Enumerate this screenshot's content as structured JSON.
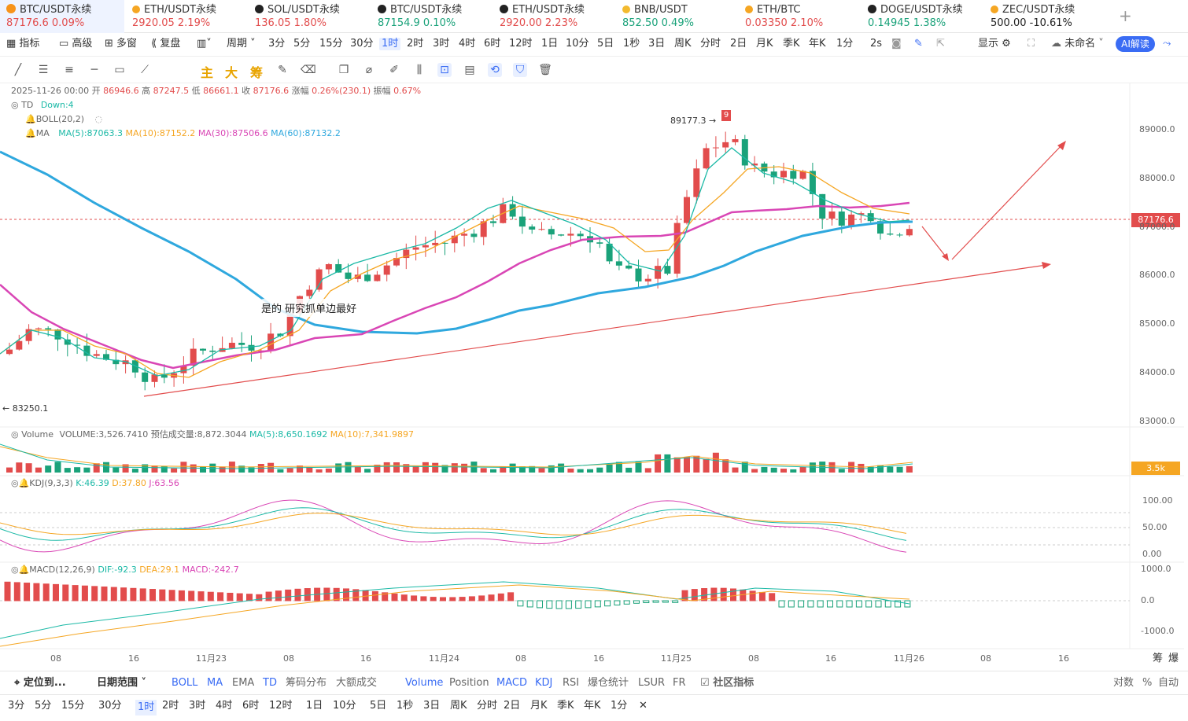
{
  "tickers": [
    {
      "name": "BTC/USDT永续",
      "value": "87176.6",
      "change": "0.09%",
      "dir": "up",
      "color": "#f7931a",
      "active": true
    },
    {
      "name": "ETH/USDT永续",
      "value": "2920.05",
      "change": "2.19%",
      "dir": "up",
      "color": "#f5a623"
    },
    {
      "name": "SOL/USDT永续",
      "value": "136.05",
      "change": "1.80%",
      "dir": "up",
      "color": "#222"
    },
    {
      "name": "BTC/USDT永续",
      "value": "87154.9",
      "change": "0.10%",
      "dir": "dn",
      "color": "#222"
    },
    {
      "name": "ETH/USDT永续",
      "value": "2920.00",
      "change": "2.23%",
      "dir": "up",
      "color": "#222"
    },
    {
      "name": "BNB/USDT",
      "value": "852.50",
      "change": "0.49%",
      "dir": "dn",
      "color": "#f3ba2f"
    },
    {
      "name": "ETH/BTC",
      "value": "0.03350",
      "change": "2.10%",
      "dir": "up",
      "color": "#f5a623"
    },
    {
      "name": "DOGE/USDT永续",
      "value": "0.14945",
      "change": "1.38%",
      "dir": "dn",
      "color": "#222"
    },
    {
      "name": "ZEC/USDT永续",
      "value": "500.00",
      "change": "-10.61%",
      "dir": "plain",
      "color": "#f5a623"
    }
  ],
  "toolbar": {
    "items": [
      "指标",
      "高级",
      "多窗",
      "复盘",
      "周期",
      "3分",
      "5分",
      "15分",
      "30分",
      "1时",
      "2时",
      "3时",
      "4时",
      "6时",
      "12时",
      "1日",
      "10分",
      "5日",
      "1秒",
      "3日",
      "周K",
      "分时",
      "2日",
      "月K",
      "季K",
      "年K",
      "1分",
      "2s",
      "显示",
      "未命名"
    ],
    "ai": "AI解读"
  },
  "drawtools": {
    "labels": [
      "主",
      "大",
      "筹"
    ]
  },
  "info": {
    "date": "2025-11-26 00:00",
    "open_l": "开",
    "open": "86946.6",
    "high_l": "高",
    "high": "87247.5",
    "low_l": "低",
    "low": "86661.1",
    "close_l": "收",
    "close": "87176.6",
    "chg_l": "涨幅",
    "chg": "0.26%(230.1)",
    "amp_l": "振幅",
    "amp": "0.67%"
  },
  "indicators": {
    "td": "TD",
    "td_val": "Down:4",
    "boll": "BOLL(20,2)",
    "ma": "MA",
    "ma5": "MA(5):87063.3",
    "ma10": "MA(10):87152.2",
    "ma30": "MA(30):87506.6",
    "ma60": "MA(60):87132.2",
    "volume": "Volume",
    "vol": "VOLUME:3,526.7410",
    "vol_est": "预估成交量:8,872.3044",
    "vol_ma5": "MA(5):8,650.1692",
    "vol_ma10": "MA(10):7,341.9897",
    "kdj": "KDJ(9,3,3)",
    "k": "K:46.39",
    "d": "D:37.80",
    "j": "J:63.56",
    "macd": "MACD(12,26,9)",
    "dif": "DIF:-92.3",
    "dea": "DEA:29.1",
    "macd_v": "MACD:-242.7"
  },
  "annotations": {
    "high": "89177.3 →",
    "low": "← 83250.1",
    "td9": "9",
    "tip": "是的 研究抓单边最好"
  },
  "price_axis": [
    "89000.0",
    "88000.0",
    "87000.0",
    "86000.0",
    "85000.0",
    "84000.0",
    "83000.0"
  ],
  "last_price": "87176.6",
  "vol_tag": "3.5k",
  "kdj_axis": [
    "100.00",
    "50.00",
    "0.00"
  ],
  "macd_axis": [
    "1000.0",
    "0.0",
    "-1000.0"
  ],
  "time_axis": [
    "08",
    "16",
    "11月23",
    "08",
    "16",
    "11月24",
    "08",
    "16",
    "11月25",
    "08",
    "16",
    "11月26",
    "08",
    "16"
  ],
  "axis_corner": [
    "筹",
    "爆"
  ],
  "bottom": {
    "locate": "定位到...",
    "range": "日期范围",
    "items": [
      "BOLL",
      "MA",
      "EMA",
      "TD",
      "筹码分布",
      "大额成交",
      "Volume",
      "Position",
      "MACD",
      "KDJ",
      "RSI",
      "爆仓统计",
      "LSUR",
      "FR",
      "社区指标"
    ],
    "right": [
      "对数",
      "%",
      "自动"
    ]
  },
  "periods": [
    "3分",
    "5分",
    "15分",
    "30分",
    "1时",
    "2时",
    "3时",
    "4时",
    "6时",
    "12时",
    "1日",
    "10分",
    "5日",
    "1秒",
    "3日",
    "周K",
    "分时",
    "2日",
    "月K",
    "季K",
    "年K",
    "1分"
  ],
  "colors": {
    "up": "#e24c4c",
    "down": "#1aa27a",
    "ma5": "#1bb9a6",
    "ma10": "#f5a623",
    "ma30": "#d946b5",
    "ma60": "#2fa8de",
    "accent": "#3a6cf4"
  }
}
